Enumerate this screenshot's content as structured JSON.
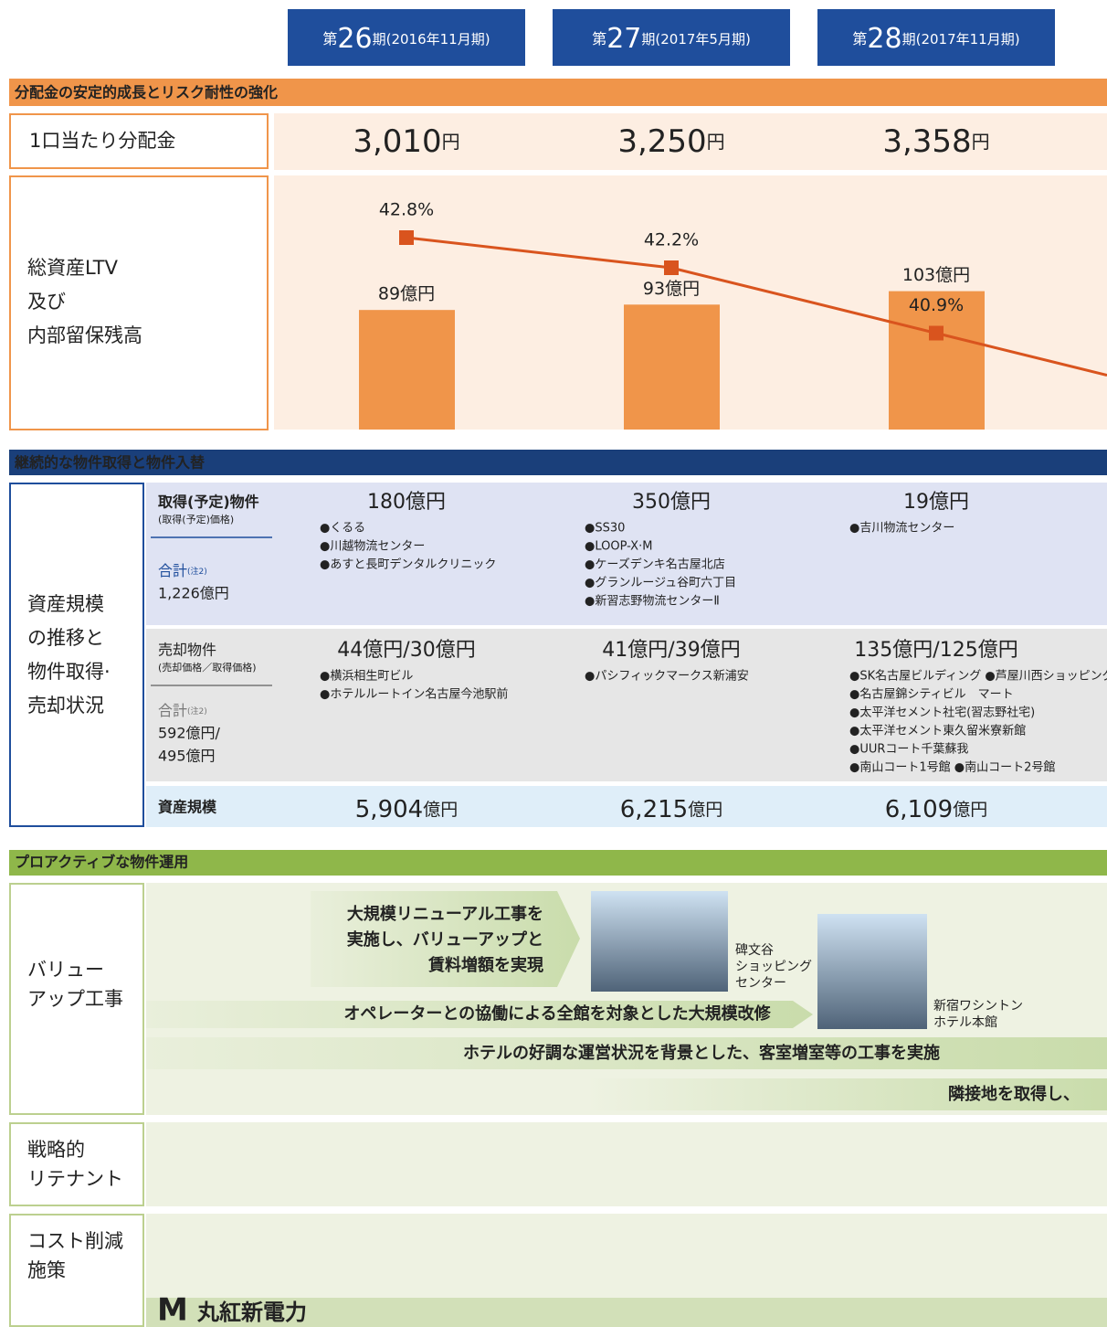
{
  "periods": [
    {
      "pre": "第",
      "number": "26",
      "post": "期(2016年11月期)"
    },
    {
      "pre": "第",
      "number": "27",
      "post": "期(2017年5月期)"
    },
    {
      "pre": "第",
      "number": "28",
      "post": "期(2017年11月期)"
    }
  ],
  "distribution": {
    "section_title": "分配金の安定的成長とリスク耐性の強化",
    "row_label": "1口当たり分配金",
    "values": [
      "3,010",
      "3,250",
      "3,358"
    ],
    "unit": "円"
  },
  "ltv_row": {
    "label": [
      "総資産LTV",
      "及び",
      "内部留保残高"
    ]
  },
  "chart_data": {
    "type": "bar",
    "series": [
      {
        "type": "bar",
        "color": "#f0954a",
        "values": [
          89,
          93,
          103
        ],
        "value_labels": [
          "89億円",
          "93億円",
          "103億円"
        ]
      },
      {
        "type": "line",
        "color": "#d9541e",
        "values": [
          42.8,
          42.2,
          40.9
        ],
        "value_labels": [
          "42.8%",
          "42.2%",
          "40.9%"
        ]
      }
    ]
  },
  "portfolio": {
    "section_title": "継続的な物件取得と物件入替",
    "row_label": [
      "資産規模",
      "の推移と",
      "物件取得·",
      "売却状況"
    ],
    "acquisition": {
      "label": "取得(予定)物件",
      "sublabel": "(取得(予定)価格)",
      "total_label": "合計",
      "note": "(注2)",
      "total": [
        "1,226億円"
      ],
      "columns": [
        {
          "amount": "180億円",
          "items": [
            "●くるる",
            "●川越物流センター",
            "●あすと長町デンタルクリニック"
          ]
        },
        {
          "amount": "350億円",
          "items": [
            "●SS30",
            "●LOOP-X·M",
            "●ケーズデンキ名古屋北店",
            "●グランルージュ谷町六丁目",
            "●新習志野物流センターⅡ"
          ]
        },
        {
          "amount": "19億円",
          "items": [
            "●吉川物流センター"
          ]
        }
      ]
    },
    "disposition": {
      "label": "売却物件",
      "sublabel": "(売却価格／取得価格)",
      "total_label": "合計",
      "note": "(注2)",
      "total": [
        "592億円/",
        "495億円"
      ],
      "columns": [
        {
          "amount": "44億円/30億円",
          "items": [
            "●横浜相生町ビル",
            "●ホテルルートイン名古屋今池駅前"
          ]
        },
        {
          "amount": "41億円/39億円",
          "items": [
            "●パシフィックマークス新浦安"
          ]
        },
        {
          "amount": "135億円/125億円",
          "items": [
            "●SK名古屋ビルディング ●芦屋川西ショッピング",
            "●名古屋錦シティビル　マート",
            "●太平洋セメント社宅(習志野社宅)",
            "●太平洋セメント東久留米寮新館",
            "●UURコート千葉蘇我",
            "●南山コート1号館 ●南山コート2号館"
          ]
        }
      ]
    },
    "asset_size": {
      "label": "資産規模",
      "values": [
        "5,904",
        "6,215",
        "6,109"
      ],
      "unit": "億円"
    }
  },
  "operations": {
    "section_title": "プロアクティブな物件運用",
    "rows": [
      {
        "label": [
          "バリュー",
          "アップ工事"
        ]
      },
      {
        "label": [
          "戦略的",
          "リテナント"
        ]
      },
      {
        "label": [
          "コスト削減",
          "施策"
        ]
      }
    ],
    "renewal_text": [
      "大規模リニューアル工事を",
      "実施し、バリューアップと",
      "賃料増額を実現"
    ],
    "arrows": [
      "オペレーターとの協働による全館を対象とした大規模改修",
      "ホテルの好調な運営状況を背景とした、客室増室等の工事を実施",
      "隣接地を取得し、"
    ],
    "captions": [
      [
        "碑文谷",
        "ショッピング",
        "センター"
      ],
      [
        "新宿ワシントン",
        "ホテル本館"
      ]
    ],
    "logo": {
      "mark": "M",
      "text": "丸紅新電力"
    }
  }
}
